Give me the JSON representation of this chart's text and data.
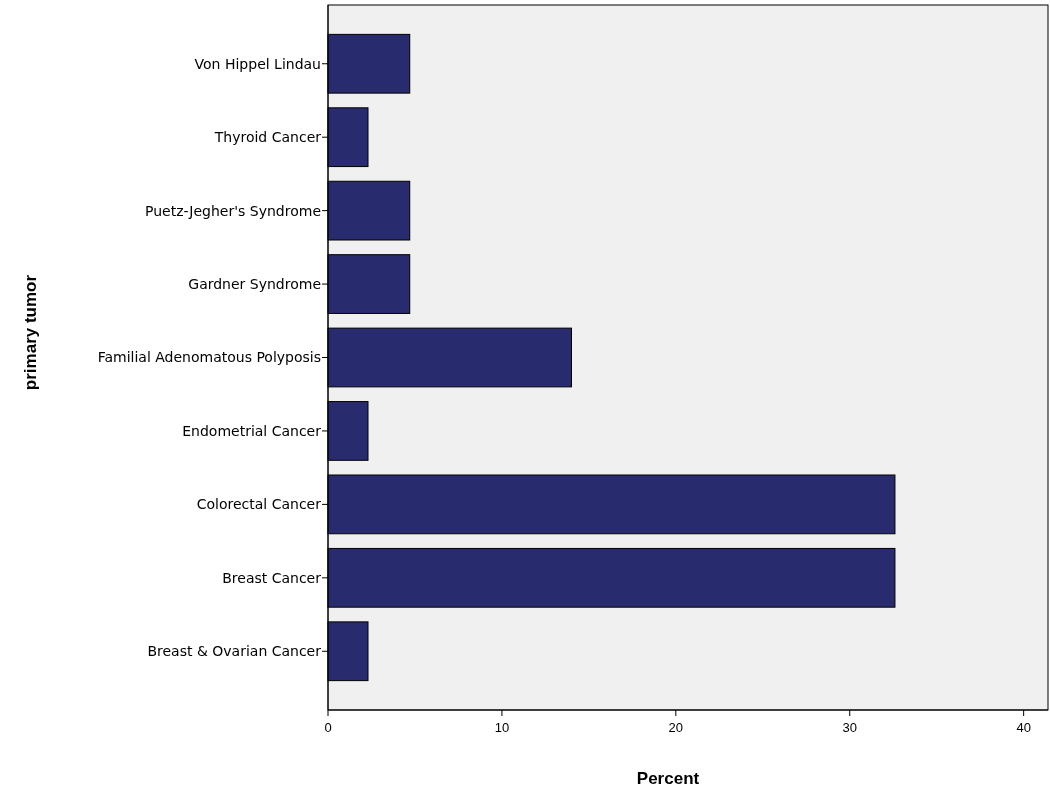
{
  "chart_data": {
    "type": "bar",
    "orientation": "horizontal",
    "xlabel": "Percent",
    "ylabel": "primary tumor",
    "categories": [
      "Von Hippel Lindau",
      "Thyroid Cancer",
      "Puetz-Jegher's Syndrome",
      "Gardner Syndrome",
      "Familial Adenomatous Polyposis",
      "Endometrial Cancer",
      "Colorectal Cancer",
      "Breast Cancer",
      "Breast & Ovarian Cancer"
    ],
    "values": [
      4.7,
      2.3,
      4.7,
      4.7,
      14.0,
      2.3,
      32.6,
      32.6,
      2.3
    ],
    "color": "#292b6f",
    "xlim": [
      0,
      41.4
    ],
    "xticks": [
      0,
      10,
      20,
      30,
      40
    ],
    "grid": false
  }
}
